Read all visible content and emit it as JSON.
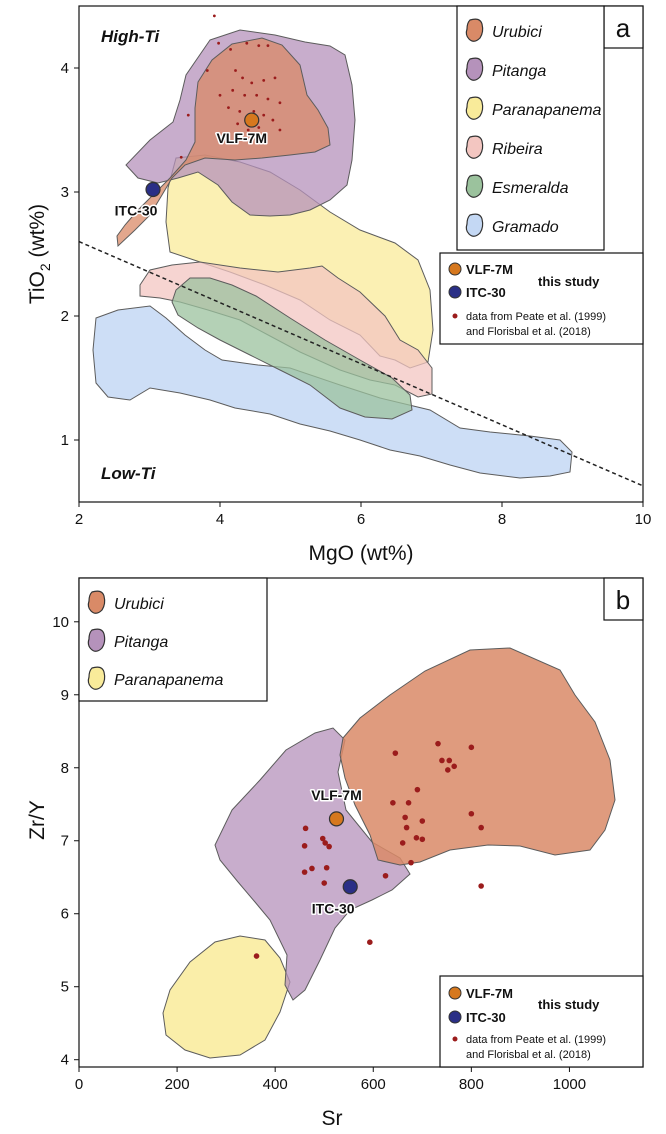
{
  "chart_data": [
    {
      "panel": "a",
      "type": "scatter",
      "xlabel": "MgO (wt%)",
      "ylabel_main": "TiO",
      "ylabel_sub": "2",
      "ylabel_tail": " (wt%)",
      "xlim": [
        2,
        10
      ],
      "ylim": [
        0.5,
        4.5
      ],
      "xticks": [
        "2",
        "4",
        "6",
        "8",
        "10"
      ],
      "yticks": [
        "1",
        "2",
        "3",
        "4"
      ],
      "region_labels": {
        "high": "High-Ti",
        "low": "Low-Ti"
      },
      "divider_line": {
        "style": "dashed",
        "from": [
          2,
          2.6
        ],
        "to": [
          10,
          0.63
        ]
      },
      "fields": [
        {
          "name": "Urubici",
          "color": "#d98a67"
        },
        {
          "name": "Pitanga",
          "color": "#b592bb"
        },
        {
          "name": "Paranapanema",
          "color": "#f9eb9a"
        },
        {
          "name": "Ribeira",
          "color": "#f3c6c1"
        },
        {
          "name": "Esmeralda",
          "color": "#9bc29d"
        },
        {
          "name": "Gramado",
          "color": "#c4d8f4"
        }
      ],
      "samples": [
        {
          "name": "VLF-7M",
          "x": 4.45,
          "y": 3.58,
          "color": "#d6781e"
        },
        {
          "name": "ITC-30",
          "x": 3.05,
          "y": 3.02,
          "color": "#2a2f86"
        }
      ],
      "literature_points": [
        [
          3.92,
          4.42
        ],
        [
          3.82,
          3.98
        ],
        [
          3.55,
          3.62
        ],
        [
          3.45,
          3.28
        ],
        [
          3.98,
          4.2
        ],
        [
          4.15,
          4.15
        ],
        [
          4.38,
          4.2
        ],
        [
          4.55,
          4.18
        ],
        [
          4.68,
          4.18
        ],
        [
          4.22,
          3.98
        ],
        [
          4.32,
          3.92
        ],
        [
          4.45,
          3.88
        ],
        [
          4.62,
          3.9
        ],
        [
          4.78,
          3.92
        ],
        [
          4.0,
          3.78
        ],
        [
          4.18,
          3.82
        ],
        [
          4.35,
          3.78
        ],
        [
          4.52,
          3.78
        ],
        [
          4.68,
          3.75
        ],
        [
          4.85,
          3.72
        ],
        [
          4.12,
          3.68
        ],
        [
          4.28,
          3.65
        ],
        [
          4.48,
          3.65
        ],
        [
          4.62,
          3.62
        ],
        [
          4.25,
          3.55
        ],
        [
          4.4,
          3.5
        ],
        [
          4.55,
          3.52
        ],
        [
          4.75,
          3.58
        ],
        [
          4.85,
          3.5
        ]
      ],
      "legend_study": "this study",
      "legend_literature": "data from Peate et al. (1999) and Florisbal et al. (2018)",
      "legend_literature_line1": "data from Peate et al. (1999)",
      "legend_literature_line2": "and Florisbal et al. (2018)"
    },
    {
      "panel": "b",
      "type": "scatter",
      "xlabel": "Sr",
      "ylabel": "Zr/Y",
      "xlim": [
        0,
        1150
      ],
      "ylim": [
        3.9,
        10.6
      ],
      "xticks": [
        "0",
        "200",
        "400",
        "600",
        "800",
        "1000"
      ],
      "yticks": [
        "4",
        "5",
        "6",
        "7",
        "8",
        "9",
        "10"
      ],
      "fields": [
        {
          "name": "Urubici",
          "color": "#d98a67"
        },
        {
          "name": "Pitanga",
          "color": "#b592bb"
        },
        {
          "name": "Paranapanema",
          "color": "#f9eb9a"
        }
      ],
      "samples": [
        {
          "name": "VLF-7M",
          "x": 525,
          "y": 7.3,
          "color": "#d6781e"
        },
        {
          "name": "ITC-30",
          "x": 553,
          "y": 6.37,
          "color": "#2a2f86"
        }
      ],
      "literature_points": [
        [
          645,
          8.2
        ],
        [
          732,
          8.33
        ],
        [
          755,
          8.1
        ],
        [
          740,
          8.1
        ],
        [
          800,
          8.28
        ],
        [
          765,
          8.02
        ],
        [
          752,
          7.97
        ],
        [
          640,
          7.52
        ],
        [
          672,
          7.52
        ],
        [
          690,
          7.7
        ],
        [
          665,
          7.32
        ],
        [
          700,
          7.27
        ],
        [
          800,
          7.37
        ],
        [
          668,
          7.18
        ],
        [
          700,
          7.02
        ],
        [
          820,
          7.18
        ],
        [
          688,
          7.04
        ],
        [
          660,
          6.97
        ],
        [
          677,
          6.7
        ],
        [
          625,
          6.52
        ],
        [
          820,
          6.38
        ],
        [
          462,
          7.17
        ],
        [
          497,
          7.03
        ],
        [
          502,
          6.97
        ],
        [
          510,
          6.92
        ],
        [
          460,
          6.93
        ],
        [
          475,
          6.62
        ],
        [
          460,
          6.57
        ],
        [
          505,
          6.63
        ],
        [
          500,
          6.42
        ],
        [
          540,
          6.02
        ],
        [
          593,
          5.61
        ],
        [
          362,
          5.42
        ]
      ],
      "legend_study": "this study",
      "legend_literature": "data from Peate et al. (1999) and Florisbal et al. (2018)",
      "legend_literature_line1": "data from Peate et al. (1999)",
      "legend_literature_line2": "and Florisbal et al. (2018)"
    }
  ]
}
